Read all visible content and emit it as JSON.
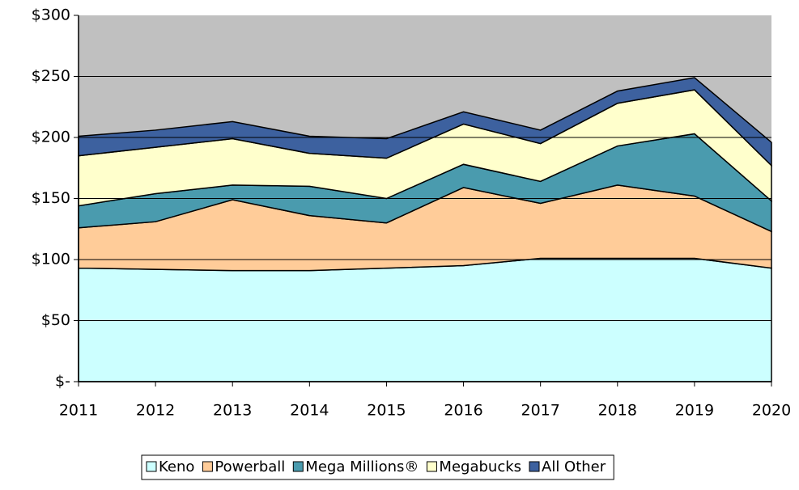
{
  "chart_data": {
    "type": "stacked_area",
    "categories": [
      "2011",
      "2012",
      "2013",
      "2014",
      "2015",
      "2016",
      "2017",
      "2018",
      "2019",
      "2020"
    ],
    "series": [
      {
        "name": "Keno",
        "color": "#ccffff",
        "values": [
          93,
          92,
          91,
          91,
          93,
          95,
          101,
          101,
          101,
          93
        ]
      },
      {
        "name": "Powerball",
        "color": "#ffcc99",
        "values": [
          33,
          39,
          58,
          45,
          37,
          64,
          45,
          60,
          51,
          30
        ]
      },
      {
        "name": "Mega Millions®",
        "color": "#4a9bae",
        "values": [
          18,
          23,
          12,
          24,
          20,
          19,
          18,
          32,
          51,
          25
        ]
      },
      {
        "name": "Megabucks",
        "color": "#ffffcc",
        "values": [
          41,
          38,
          38,
          27,
          33,
          33,
          31,
          35,
          36,
          29
        ]
      },
      {
        "name": "All Other",
        "color": "#3d619f",
        "values": [
          16,
          14,
          14,
          14,
          16,
          10,
          11,
          10,
          10,
          19
        ]
      }
    ],
    "ylim": [
      0,
      300
    ],
    "yticks": [
      {
        "value": 0,
        "label": "$-"
      },
      {
        "value": 50,
        "label": "$50"
      },
      {
        "value": 100,
        "label": "$100"
      },
      {
        "value": 150,
        "label": "$150"
      },
      {
        "value": 200,
        "label": "$200"
      },
      {
        "value": 250,
        "label": "$250"
      },
      {
        "value": 300,
        "label": "$300"
      }
    ],
    "grid": true,
    "legend": "bottom",
    "background": "#c0c0c0"
  }
}
